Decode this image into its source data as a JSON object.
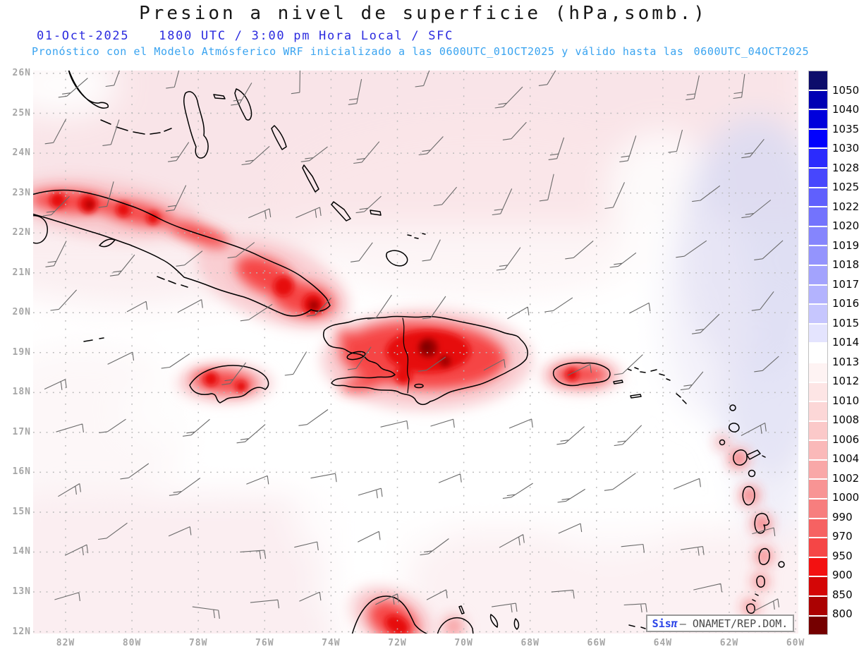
{
  "header": {
    "title": "Presion a nivel de superficie (hPa,somb.)",
    "date": "01-Oct-2025",
    "time_local": "1800 UTC / 3:00 pm Hora Local / SFC",
    "forecast_prefix": "Pronóstico con el Modelo Atmósferico WRF inicializado a las 0600UTC_01OCT2025 y válido hasta las",
    "forecast_valid": "0600UTC_04OCT2025"
  },
  "map": {
    "lat_labels": [
      "26N",
      "25N",
      "24N",
      "23N",
      "22N",
      "21N",
      "20N",
      "19N",
      "18N",
      "17N",
      "16N",
      "15N",
      "14N",
      "13N",
      "12N"
    ],
    "lon_labels": [
      "82W",
      "80W",
      "78W",
      "76W",
      "74W",
      "72W",
      "70W",
      "68W",
      "66W",
      "64W",
      "62W",
      "60W"
    ],
    "lat_range": [
      12,
      26
    ],
    "lon_range": [
      82,
      60
    ],
    "gridline_color": "#b8b8b8",
    "coastline_color": "#000000"
  },
  "colorbar": {
    "unit": "hPa",
    "labels": [
      "1050",
      "1040",
      "1035",
      "1030",
      "1028",
      "1025",
      "1022",
      "1020",
      "1019",
      "1018",
      "1017",
      "1016",
      "1015",
      "1014",
      "1013",
      "1012",
      "1010",
      "1008",
      "1006",
      "1004",
      "1002",
      "1000",
      "990",
      "970",
      "950",
      "900",
      "850",
      "800"
    ],
    "colors": [
      "#0d0d6b",
      "#0000b4",
      "#0000dc",
      "#0202fd",
      "#2b2bfd",
      "#4747fd",
      "#6060fd",
      "#7373fd",
      "#8585fd",
      "#9494fd",
      "#a3a3fd",
      "#b3b3fe",
      "#c6c6fe",
      "#e4e4fe",
      "#ffffff",
      "#fef3f3",
      "#fde5e5",
      "#fcd7d7",
      "#fbc9c9",
      "#fab9b9",
      "#f9a8a8",
      "#f89494",
      "#f77e7e",
      "#f66262",
      "#f54646",
      "#f31111",
      "#d40606",
      "#ab0202",
      "#750000"
    ]
  },
  "wind_barbs": {
    "color": "#6a6a6a",
    "note": "easterly / trade-wind barbs over the Caribbean basin"
  },
  "attribution": {
    "brand": "Sis",
    "symbol": "π",
    "text": "– ONAMET/REP.DOM."
  }
}
